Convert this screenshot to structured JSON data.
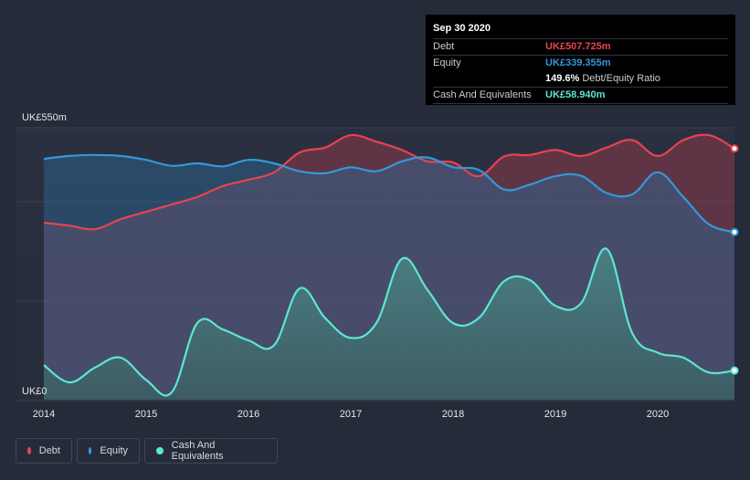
{
  "chart_data": {
    "type": "area",
    "y_unit_prefix": "UK£",
    "y_top_label": "UK£550m",
    "y_bottom_label": "UK£0",
    "ylim": [
      0,
      550
    ],
    "xlim": [
      2014.0,
      2020.75
    ],
    "x_ticks": [
      "2014",
      "2015",
      "2016",
      "2017",
      "2018",
      "2019",
      "2020"
    ],
    "series": [
      {
        "name": "Debt",
        "color": "#e8434f",
        "x": [
          2014.0,
          2014.25,
          2014.5,
          2014.75,
          2015.0,
          2015.25,
          2015.5,
          2015.75,
          2016.0,
          2016.25,
          2016.5,
          2016.75,
          2017.0,
          2017.25,
          2017.5,
          2017.75,
          2018.0,
          2018.25,
          2018.5,
          2018.75,
          2019.0,
          2019.25,
          2019.5,
          2019.75,
          2020.0,
          2020.25,
          2020.5,
          2020.75
        ],
        "values": [
          358,
          352,
          345,
          365,
          380,
          395,
          410,
          432,
          445,
          460,
          500,
          510,
          535,
          522,
          505,
          482,
          480,
          452,
          492,
          495,
          505,
          493,
          510,
          525,
          493,
          525,
          535,
          508
        ]
      },
      {
        "name": "Equity",
        "color": "#3498db",
        "x": [
          2014.0,
          2014.25,
          2014.5,
          2014.75,
          2015.0,
          2015.25,
          2015.5,
          2015.75,
          2016.0,
          2016.25,
          2016.5,
          2016.75,
          2017.0,
          2017.25,
          2017.5,
          2017.75,
          2018.0,
          2018.25,
          2018.5,
          2018.75,
          2019.0,
          2019.25,
          2019.5,
          2019.75,
          2020.0,
          2020.25,
          2020.5,
          2020.75
        ],
        "values": [
          487,
          493,
          495,
          493,
          485,
          473,
          478,
          472,
          485,
          478,
          462,
          458,
          470,
          462,
          482,
          490,
          470,
          465,
          425,
          435,
          452,
          453,
          418,
          415,
          460,
          410,
          355,
          339
        ]
      },
      {
        "name": "Cash And Equivalents",
        "color": "#5ee6d0",
        "x": [
          2014.0,
          2014.25,
          2014.5,
          2014.75,
          2015.0,
          2015.25,
          2015.5,
          2015.75,
          2016.0,
          2016.25,
          2016.5,
          2016.75,
          2017.0,
          2017.25,
          2017.5,
          2017.75,
          2018.0,
          2018.25,
          2018.5,
          2018.75,
          2019.0,
          2019.25,
          2019.5,
          2019.75,
          2020.0,
          2020.25,
          2020.5,
          2020.75
        ],
        "values": [
          70,
          35,
          65,
          85,
          40,
          15,
          155,
          142,
          120,
          110,
          225,
          165,
          125,
          155,
          285,
          222,
          155,
          165,
          240,
          242,
          190,
          195,
          305,
          135,
          95,
          85,
          55,
          59
        ]
      }
    ],
    "legend_position": "bottom-left"
  },
  "tooltip": {
    "date": "Sep 30 2020",
    "rows": [
      {
        "label": "Debt",
        "value": "UK£507.725m",
        "color": "#e8434f"
      },
      {
        "label": "Equity",
        "value": "UK£339.355m",
        "color": "#3498db"
      },
      {
        "label": "",
        "ratio": "149.6%",
        "ratio_label": "Debt/Equity Ratio"
      },
      {
        "label": "Cash And Equivalents",
        "value": "UK£58.940m",
        "color": "#5ee6d0"
      }
    ]
  },
  "legend": [
    {
      "label": "Debt",
      "color": "#e8434f"
    },
    {
      "label": "Equity",
      "color": "#3498db"
    },
    {
      "label": "Cash And Equivalents",
      "color": "#5ee6d0"
    }
  ]
}
